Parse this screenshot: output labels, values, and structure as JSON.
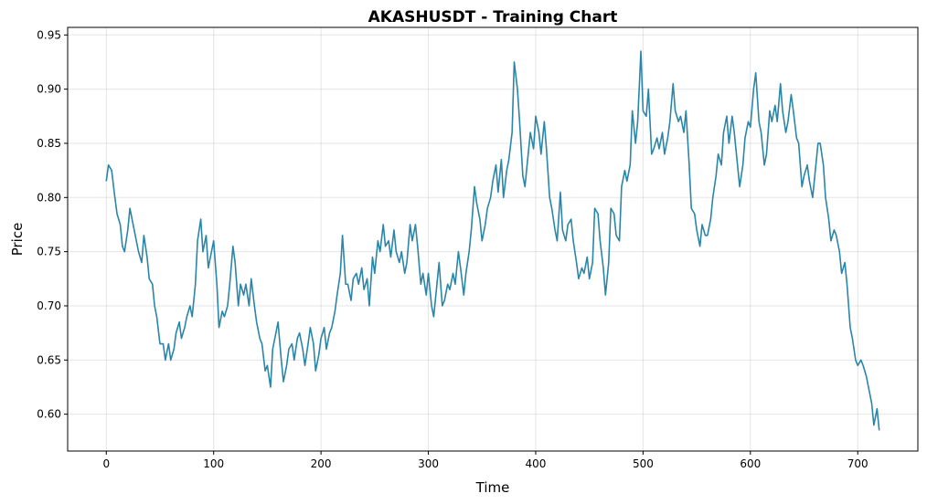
{
  "chart_data": {
    "type": "line",
    "title": "AKASHUSDT - Training Chart",
    "xlabel": "Time",
    "ylabel": "Price",
    "x": [
      0,
      2,
      5,
      8,
      10,
      13,
      15,
      17,
      20,
      22,
      25,
      28,
      30,
      33,
      35,
      38,
      40,
      43,
      45,
      47,
      50,
      53,
      55,
      58,
      60,
      63,
      65,
      68,
      70,
      73,
      75,
      78,
      80,
      83,
      85,
      88,
      90,
      93,
      95,
      98,
      100,
      103,
      105,
      108,
      110,
      113,
      115,
      118,
      120,
      123,
      125,
      128,
      130,
      133,
      135,
      138,
      140,
      143,
      145,
      148,
      150,
      153,
      155,
      158,
      160,
      163,
      165,
      168,
      170,
      173,
      175,
      178,
      180,
      183,
      185,
      188,
      190,
      193,
      195,
      198,
      200,
      203,
      205,
      208,
      210,
      213,
      215,
      218,
      220,
      223,
      225,
      228,
      230,
      233,
      235,
      238,
      240,
      243,
      245,
      248,
      250,
      253,
      255,
      258,
      260,
      263,
      265,
      268,
      270,
      273,
      275,
      278,
      280,
      283,
      285,
      288,
      290,
      293,
      295,
      298,
      300,
      303,
      305,
      308,
      310,
      313,
      315,
      318,
      320,
      323,
      325,
      328,
      330,
      333,
      335,
      338,
      340,
      343,
      345,
      348,
      350,
      353,
      355,
      358,
      360,
      363,
      365,
      368,
      370,
      373,
      375,
      378,
      380,
      383,
      385,
      388,
      390,
      393,
      395,
      398,
      400,
      403,
      405,
      408,
      410,
      413,
      415,
      418,
      420,
      423,
      425,
      428,
      430,
      433,
      435,
      438,
      440,
      443,
      445,
      448,
      450,
      453,
      455,
      458,
      460,
      463,
      465,
      468,
      470,
      473,
      475,
      478,
      480,
      483,
      485,
      488,
      490,
      493,
      495,
      498,
      500,
      503,
      505,
      508,
      510,
      513,
      515,
      518,
      520,
      523,
      525,
      528,
      530,
      533,
      535,
      538,
      540,
      543,
      545,
      548,
      550,
      553,
      555,
      558,
      560,
      563,
      565,
      568,
      570,
      573,
      575,
      578,
      580,
      583,
      585,
      588,
      590,
      593,
      595,
      598,
      600,
      603,
      605,
      608,
      610,
      613,
      615,
      618,
      620,
      623,
      625,
      628,
      630,
      633,
      635,
      638,
      640,
      643,
      645,
      648,
      650,
      653,
      655,
      658,
      660,
      663,
      665,
      668,
      670,
      673,
      675,
      678,
      680,
      683,
      685,
      688,
      690,
      693,
      695,
      698,
      700,
      703,
      705,
      708,
      710,
      713,
      715,
      718,
      720
    ],
    "series": [
      {
        "name": "Price",
        "color": "#2a86a8",
        "values": [
          0.815,
          0.83,
          0.825,
          0.8,
          0.785,
          0.775,
          0.755,
          0.75,
          0.77,
          0.79,
          0.775,
          0.76,
          0.75,
          0.74,
          0.765,
          0.745,
          0.725,
          0.72,
          0.7,
          0.69,
          0.665,
          0.665,
          0.65,
          0.665,
          0.65,
          0.66,
          0.675,
          0.685,
          0.67,
          0.68,
          0.69,
          0.7,
          0.69,
          0.72,
          0.76,
          0.78,
          0.75,
          0.765,
          0.735,
          0.75,
          0.76,
          0.72,
          0.68,
          0.695,
          0.69,
          0.7,
          0.72,
          0.755,
          0.74,
          0.7,
          0.72,
          0.71,
          0.72,
          0.7,
          0.725,
          0.7,
          0.685,
          0.67,
          0.665,
          0.64,
          0.645,
          0.625,
          0.66,
          0.675,
          0.685,
          0.65,
          0.63,
          0.645,
          0.66,
          0.665,
          0.65,
          0.67,
          0.675,
          0.66,
          0.645,
          0.665,
          0.68,
          0.665,
          0.64,
          0.655,
          0.67,
          0.68,
          0.66,
          0.675,
          0.68,
          0.695,
          0.71,
          0.73,
          0.765,
          0.72,
          0.72,
          0.705,
          0.725,
          0.73,
          0.72,
          0.735,
          0.715,
          0.725,
          0.7,
          0.745,
          0.73,
          0.76,
          0.75,
          0.775,
          0.755,
          0.76,
          0.745,
          0.77,
          0.75,
          0.74,
          0.75,
          0.73,
          0.74,
          0.775,
          0.76,
          0.775,
          0.755,
          0.72,
          0.73,
          0.71,
          0.73,
          0.7,
          0.69,
          0.72,
          0.74,
          0.7,
          0.705,
          0.72,
          0.715,
          0.73,
          0.72,
          0.75,
          0.735,
          0.71,
          0.73,
          0.75,
          0.77,
          0.81,
          0.795,
          0.78,
          0.76,
          0.775,
          0.79,
          0.8,
          0.815,
          0.83,
          0.805,
          0.835,
          0.8,
          0.825,
          0.835,
          0.86,
          0.925,
          0.9,
          0.87,
          0.82,
          0.81,
          0.84,
          0.86,
          0.845,
          0.875,
          0.86,
          0.84,
          0.87,
          0.845,
          0.8,
          0.79,
          0.77,
          0.76,
          0.805,
          0.77,
          0.76,
          0.775,
          0.78,
          0.76,
          0.74,
          0.725,
          0.735,
          0.73,
          0.745,
          0.725,
          0.74,
          0.79,
          0.785,
          0.76,
          0.735,
          0.71,
          0.74,
          0.79,
          0.785,
          0.765,
          0.76,
          0.81,
          0.825,
          0.815,
          0.83,
          0.88,
          0.85,
          0.87,
          0.935,
          0.88,
          0.875,
          0.9,
          0.84,
          0.845,
          0.855,
          0.845,
          0.86,
          0.84,
          0.855,
          0.87,
          0.905,
          0.88,
          0.87,
          0.875,
          0.86,
          0.88,
          0.83,
          0.79,
          0.785,
          0.77,
          0.755,
          0.775,
          0.765,
          0.765,
          0.78,
          0.8,
          0.82,
          0.84,
          0.83,
          0.86,
          0.875,
          0.85,
          0.875,
          0.86,
          0.83,
          0.81,
          0.83,
          0.855,
          0.87,
          0.865,
          0.9,
          0.915,
          0.87,
          0.86,
          0.83,
          0.84,
          0.88,
          0.87,
          0.885,
          0.87,
          0.905,
          0.88,
          0.86,
          0.87,
          0.895,
          0.88,
          0.855,
          0.85,
          0.81,
          0.82,
          0.83,
          0.815,
          0.8,
          0.82,
          0.85,
          0.85,
          0.83,
          0.8,
          0.78,
          0.76,
          0.77,
          0.765,
          0.75,
          0.73,
          0.74,
          0.72,
          0.68,
          0.67,
          0.65,
          0.645,
          0.65,
          0.645,
          0.635,
          0.625,
          0.61,
          0.59,
          0.605,
          0.585
        ]
      }
    ],
    "xlim": [
      -36,
      756
    ],
    "ylim": [
      0.566,
      0.957
    ],
    "xticks": [
      0,
      100,
      200,
      300,
      400,
      500,
      600,
      700
    ],
    "yticks": [
      {
        "value": 0.6,
        "label": "0.60"
      },
      0.65,
      {
        "value": 0.7,
        "label": "0.70"
      },
      0.75,
      {
        "value": 0.8,
        "label": "0.80"
      },
      0.85,
      {
        "value": 0.9,
        "label": "0.90"
      },
      0.95
    ],
    "grid": true
  }
}
